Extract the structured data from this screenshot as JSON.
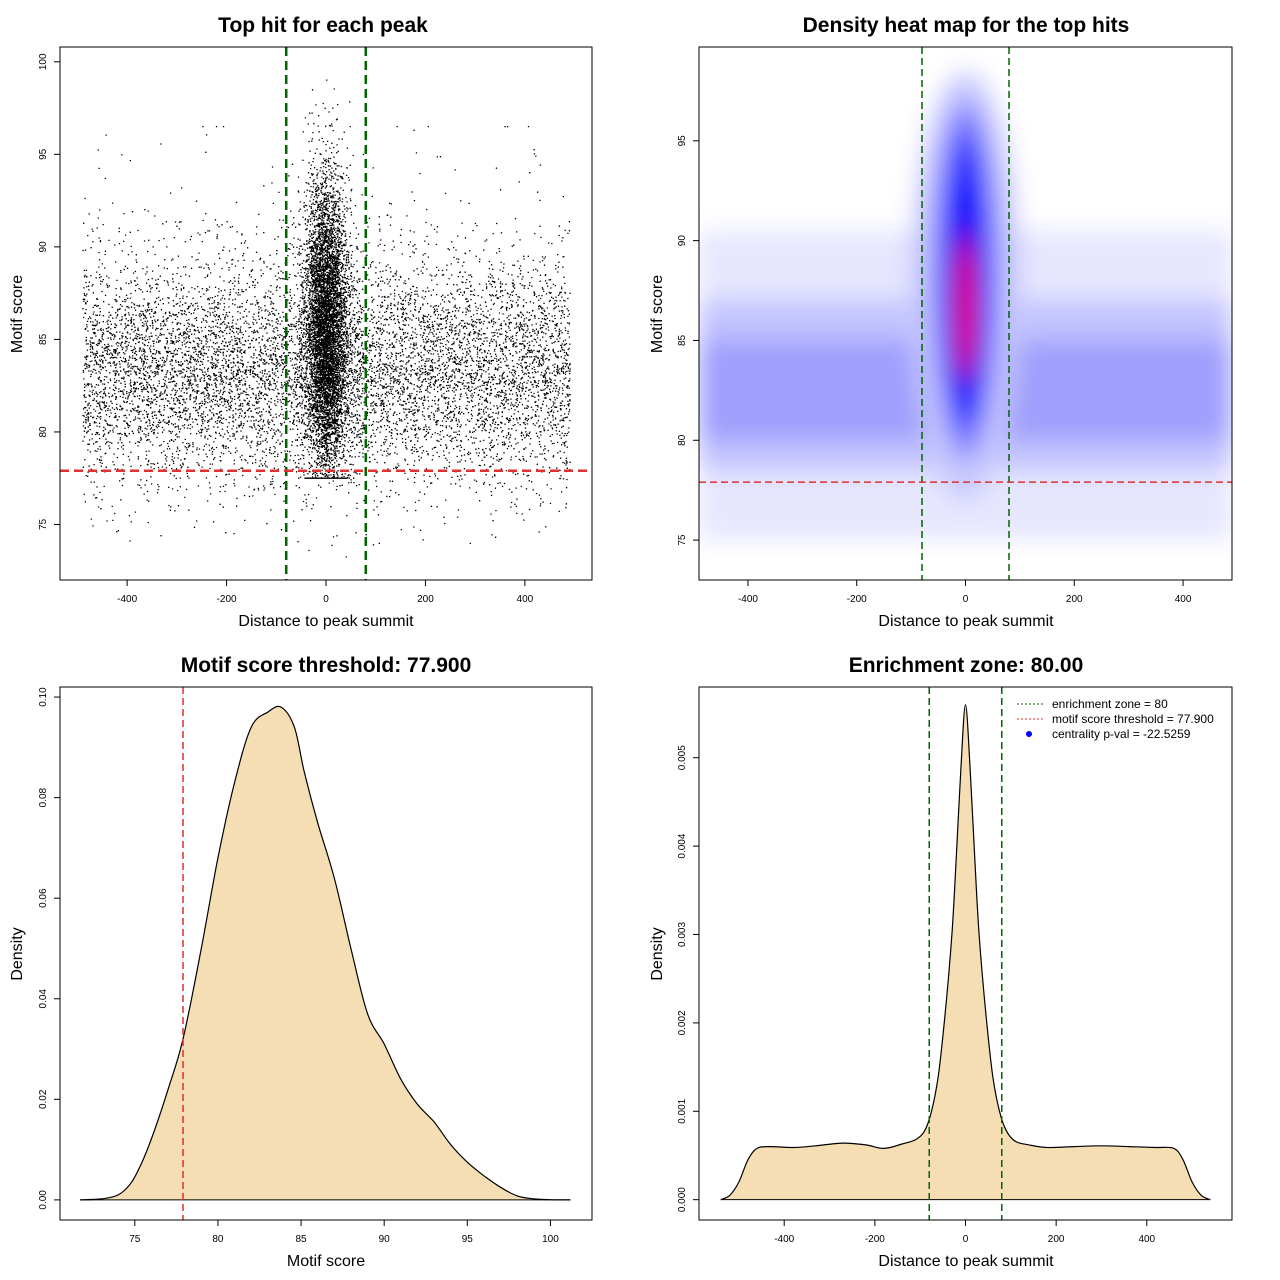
{
  "colors": {
    "points": "#000000",
    "zone_line": "#006400",
    "threshold_line": "#e03030",
    "density_fill": "#f5deb3",
    "density_line": "#000000",
    "heat_low": "#ffffff",
    "heat_mid": "#0000ff",
    "heat_high": "#ff0000",
    "legend_dot": "#0000ff"
  },
  "chart_data": [
    {
      "type": "scatter",
      "title": "Top hit for each peak",
      "xlabel": "Distance to peak summit",
      "ylabel": "Motif score",
      "xlim": [
        -535,
        535
      ],
      "ylim": [
        72,
        100.8
      ],
      "xticks": [
        "-400",
        "-200",
        "0",
        "200",
        "400"
      ],
      "yticks": [
        "75",
        "80",
        "85",
        "90",
        "95",
        "100"
      ],
      "grid": false,
      "background_points": {
        "x_range": [
          -490,
          490
        ],
        "y_mean": 83.2,
        "y_sd": 3.0,
        "y_min": 73,
        "y_max": 96.5,
        "count": 9000
      },
      "central_cluster": {
        "x_mean": 0,
        "x_sd": 22,
        "y_mean": 85.5,
        "y_sd": 4.0,
        "y_max": 99.7,
        "count": 6500
      },
      "vlines": [
        -80,
        80
      ],
      "hline": 77.9
    },
    {
      "type": "heatmap",
      "title": "Density heat map for the top hits",
      "xlabel": "Distance to peak summit",
      "ylabel": "Motif score",
      "xlim": [
        -490,
        490
      ],
      "ylim": [
        73,
        99.7
      ],
      "xticks": [
        "-400",
        "-200",
        "0",
        "200",
        "400"
      ],
      "yticks": [
        "75",
        "80",
        "85",
        "90",
        "95"
      ],
      "grid": false,
      "peak": {
        "x": 0,
        "y": 86
      },
      "vlines": [
        -80,
        80
      ],
      "hline": 77.9
    },
    {
      "type": "area",
      "title": "Motif score threshold: 77.900",
      "xlabel": "Motif score",
      "ylabel": "Density",
      "xlim": [
        70.5,
        102.5
      ],
      "ylim": [
        -0.004,
        0.102
      ],
      "xticks": [
        "75",
        "80",
        "85",
        "90",
        "95",
        "100"
      ],
      "yticks": [
        "0.00",
        "0.02",
        "0.04",
        "0.06",
        "0.08",
        "0.10"
      ],
      "grid": false,
      "x": [
        71.7,
        73,
        74,
        74.8,
        75.5,
        76.2,
        77,
        77.9,
        79,
        80,
        81,
        82,
        83,
        83.8,
        84.6,
        85.2,
        86,
        87,
        88,
        89,
        90,
        91,
        92,
        93,
        94,
        95,
        96,
        97,
        98,
        99,
        100,
        101.2
      ],
      "y": [
        0,
        0.0002,
        0.001,
        0.0035,
        0.008,
        0.014,
        0.022,
        0.032,
        0.05,
        0.068,
        0.083,
        0.094,
        0.097,
        0.098,
        0.094,
        0.085,
        0.075,
        0.064,
        0.05,
        0.037,
        0.031,
        0.024,
        0.019,
        0.0155,
        0.011,
        0.0075,
        0.0048,
        0.0025,
        0.0008,
        0.0002,
        3e-05,
        0
      ],
      "vline": 77.9
    },
    {
      "type": "area",
      "title": "Enrichment zone: 80.00",
      "xlabel": "Distance to peak summit",
      "ylabel": "Density",
      "xlim": [
        -588,
        588
      ],
      "ylim": [
        -0.00023,
        0.0058
      ],
      "xticks": [
        "-400",
        "-200",
        "0",
        "200",
        "400"
      ],
      "yticks": [
        "0.000",
        "0.001",
        "0.002",
        "0.003",
        "0.004",
        "0.005"
      ],
      "grid": false,
      "x": [
        -540,
        -520,
        -500,
        -480,
        -460,
        -430,
        -380,
        -330,
        -270,
        -220,
        -180,
        -140,
        -110,
        -90,
        -75,
        -60,
        -45,
        -30,
        -20,
        -10,
        0,
        10,
        20,
        30,
        45,
        60,
        75,
        90,
        110,
        140,
        180,
        240,
        300,
        360,
        420,
        460,
        480,
        500,
        520,
        540
      ],
      "y": [
        0,
        5e-05,
        0.0002,
        0.00045,
        0.00058,
        0.0006,
        0.00059,
        0.00061,
        0.00064,
        0.00062,
        0.00058,
        0.00063,
        0.00068,
        0.00078,
        0.001,
        0.0014,
        0.0021,
        0.003,
        0.0039,
        0.0049,
        0.0056,
        0.0049,
        0.0039,
        0.003,
        0.0021,
        0.0014,
        0.001,
        0.00078,
        0.00066,
        0.00062,
        0.00059,
        0.0006,
        0.00061,
        0.0006,
        0.00059,
        0.00058,
        0.00045,
        0.0002,
        5e-05,
        0
      ],
      "vlines": [
        -80,
        80
      ],
      "legend_position": "top-right",
      "legend": [
        {
          "label": "enrichment zone = 80",
          "style": "dotted-green"
        },
        {
          "label": "motif score threshold = 77.900",
          "style": "dotted-red"
        },
        {
          "label": "centrality p-val = -22.5259",
          "style": "blue-dot"
        }
      ]
    }
  ]
}
